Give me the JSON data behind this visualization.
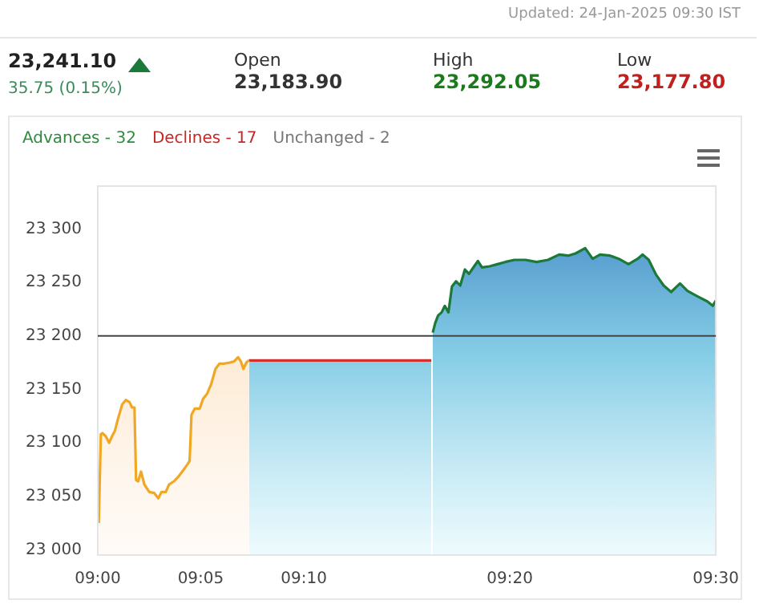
{
  "chart_data": {
    "type": "area",
    "annotations": [
      "Updated: 24-Jan-2025 09:30 IST",
      "23,241.10",
      "35.75 (0.15%)",
      "Open",
      "23,183.90",
      "High",
      "23,292.05",
      "Low",
      "23,177.80",
      "Advances - 32",
      "Declines - 17",
      "Unchanged - 2"
    ],
    "series": [
      {
        "color": "#f0a824",
        "x": [
          9.0008,
          9.0025,
          9.0038,
          9.0065,
          9.0092,
          9.0115,
          9.0138,
          9.0165,
          9.0198,
          9.0227,
          9.0257,
          9.0277,
          9.0297,
          9.031,
          9.0327,
          9.035,
          9.0377,
          9.0417,
          9.0457,
          9.049,
          9.0515,
          9.055,
          9.0577,
          9.0617,
          9.065,
          9.0683,
          9.0727,
          9.0743,
          9.0758,
          9.0785,
          9.0825,
          9.0852,
          9.0885,
          9.0918,
          9.0952,
          9.0985,
          9.1018,
          9.1068,
          9.1102,
          9.1135,
          9.1158,
          9.1178,
          9.1202,
          9.1223
        ],
        "values": [
          23025,
          23108,
          23109,
          23106,
          23100,
          23106,
          23111,
          23123,
          23136,
          23140,
          23138,
          23133,
          23133,
          23065,
          23064,
          23073,
          23061,
          23054,
          23053,
          23048,
          23054,
          23054,
          23061,
          23064,
          23068,
          23073,
          23080,
          23083,
          23126,
          23132,
          23132,
          23141,
          23146,
          23155,
          23169,
          23174,
          23174,
          23175,
          23176,
          23180,
          23176,
          23169,
          23175,
          23177
        ]
      },
      {
        "color": "#d32f2f",
        "x": [
          9.1223,
          9.2698
        ],
        "values": [
          23177,
          23177
        ]
      },
      {
        "color": "#1b7a3a",
        "x": [
          9.271,
          9.273,
          9.2753,
          9.2782,
          9.2807,
          9.2837,
          9.2865,
          9.2898,
          9.2932,
          9.297,
          9.3003,
          9.3045,
          9.3075,
          9.3108,
          9.317,
          9.3233,
          9.3295,
          9.337,
          9.346,
          9.355,
          9.3642,
          9.3732,
          9.3805,
          9.3865,
          9.3943,
          9.4003,
          9.4063,
          9.4143,
          9.4215,
          9.4293,
          9.4367,
          9.4408,
          9.4457,
          9.4517,
          9.4578,
          9.4638,
          9.471,
          9.477,
          9.485,
          9.4933,
          9.4975,
          9.5
        ],
        "values": [
          23203,
          23212,
          23219,
          23222,
          23228,
          23222,
          23246,
          23251,
          23247,
          23262,
          23258,
          23265,
          23270,
          23264,
          23265,
          23267,
          23269,
          23271,
          23271,
          23269,
          23271,
          23276,
          23275,
          23277,
          23282,
          23272,
          23276,
          23275,
          23272,
          23267,
          23272,
          23276,
          23271,
          23257,
          23247,
          23241,
          23249,
          23242,
          23237,
          23232,
          23228,
          23233
        ]
      }
    ],
    "xlim": [
      9,
      9.5
    ],
    "xticks": [
      {
        "value": 9,
        "label": "09:00"
      },
      {
        "value": 9.0833,
        "label": "09:05"
      },
      {
        "value": 9.1667,
        "label": "09:10"
      },
      {
        "value": 9.3333,
        "label": "09:20"
      },
      {
        "value": 9.5,
        "label": "09:30"
      }
    ],
    "ylim": [
      22995,
      23340
    ],
    "yticks": [
      {
        "value": 23000,
        "label": "23 000"
      },
      {
        "value": 23050,
        "label": "23 050"
      },
      {
        "value": 23100,
        "label": "23 100"
      },
      {
        "value": 23150,
        "label": "23 150"
      },
      {
        "value": 23200,
        "label": "23 200"
      },
      {
        "value": 23250,
        "label": "23 250"
      },
      {
        "value": 23300,
        "label": "23 300"
      }
    ],
    "ref_lines": [
      {
        "axis": "y",
        "value": 23200,
        "color": "#444444"
      }
    ],
    "grid": false,
    "legend": false
  }
}
